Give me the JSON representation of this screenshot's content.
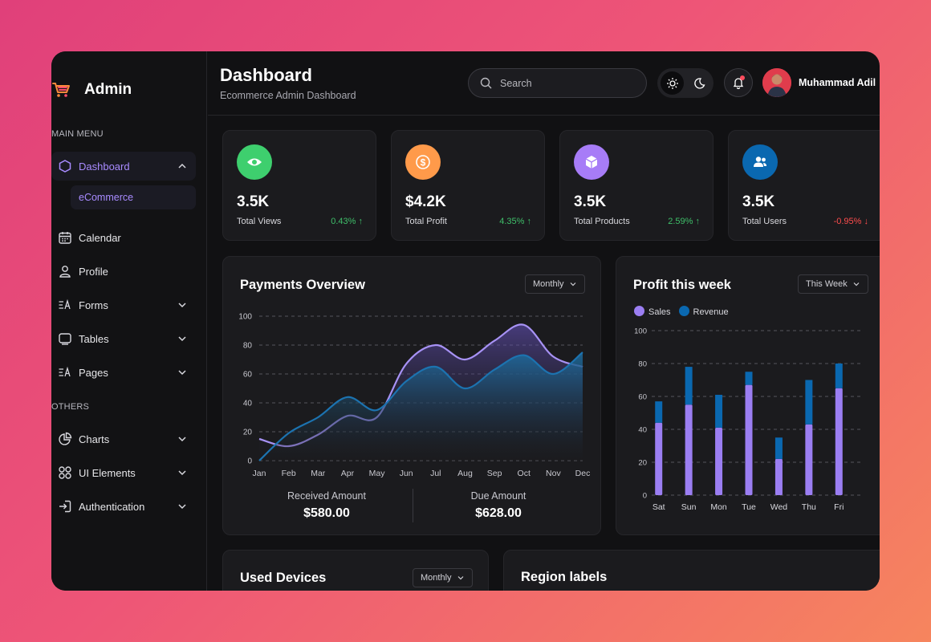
{
  "sidebar": {
    "app_title": "Admin",
    "main_menu_label": "MAIN MENU",
    "others_label": "OTHERS",
    "items": [
      {
        "label": "Dashboard",
        "icon": "hexagon-icon"
      },
      {
        "label": "Calendar",
        "icon": "calendar-icon"
      },
      {
        "label": "Profile",
        "icon": "user-icon"
      },
      {
        "label": "Forms",
        "icon": "forms-icon"
      },
      {
        "label": "Tables",
        "icon": "table-icon"
      },
      {
        "label": "Pages",
        "icon": "pages-icon"
      },
      {
        "label": "Charts",
        "icon": "pie-chart-icon"
      },
      {
        "label": "UI Elements",
        "icon": "grid-icon"
      },
      {
        "label": "Authentication",
        "icon": "login-icon"
      }
    ],
    "sub_item": "eCommerce"
  },
  "header": {
    "title": "Dashboard",
    "subtitle": "Ecommerce Admin Dashboard",
    "search_placeholder": "Search",
    "user_name": "Muhammad Adil"
  },
  "stats": [
    {
      "value": "3.5K",
      "label": "Total Views",
      "change": "0.43%",
      "arrow": "↑",
      "color": "#3ecf6e"
    },
    {
      "value": "$4.2K",
      "label": "Total Profit",
      "change": "4.35%",
      "arrow": "↑",
      "color": "#ff9a4a"
    },
    {
      "value": "3.5K",
      "label": "Total Products",
      "change": "2.59%",
      "arrow": "↑",
      "color": "#a77cf7"
    },
    {
      "value": "3.5K",
      "label": "Total Users",
      "change": "-0.95%",
      "arrow": "↓",
      "color": "#0a68b0"
    }
  ],
  "payments": {
    "title": "Payments Overview",
    "filter": "Monthly",
    "received_label": "Received Amount",
    "received_value": "$580.00",
    "due_label": "Due Amount",
    "due_value": "$628.00"
  },
  "profit": {
    "title": "Profit this week",
    "filter": "This Week"
  },
  "used_devices": {
    "title": "Used Devices",
    "filter": "Monthly"
  },
  "region": {
    "title": "Region labels"
  },
  "colors": {
    "accent": "#a88bff",
    "sales": "#9b7ef2",
    "revenue": "#0a68b0"
  },
  "chart_data": [
    {
      "type": "area",
      "categories": [
        "Jan",
        "Feb",
        "Mar",
        "Apr",
        "May",
        "Jun",
        "Jul",
        "Aug",
        "Sep",
        "Oct",
        "Nov",
        "Dec"
      ],
      "ylim": [
        0,
        100
      ],
      "yticks": [
        0,
        20,
        40,
        60,
        80,
        100
      ],
      "series": [
        {
          "values": [
            0,
            19,
            30,
            44,
            35,
            55,
            65,
            50,
            63,
            73,
            60,
            75
          ]
        },
        {
          "values": [
            15,
            10,
            18,
            31,
            30,
            67,
            80,
            70,
            83,
            94,
            72,
            65
          ]
        }
      ]
    },
    {
      "type": "bar",
      "stacked": true,
      "categories": [
        "Sat",
        "Sun",
        "Mon",
        "Tue",
        "Wed",
        "Thu",
        "Fri"
      ],
      "ylim": [
        0,
        100
      ],
      "yticks": [
        0,
        20,
        40,
        60,
        80,
        100
      ],
      "series": [
        {
          "name": "Sales",
          "values": [
            44,
            55,
            41,
            67,
            22,
            43,
            65
          ]
        },
        {
          "name": "Revenue",
          "values": [
            13,
            23,
            20,
            8,
            13,
            27,
            15
          ]
        }
      ]
    }
  ]
}
